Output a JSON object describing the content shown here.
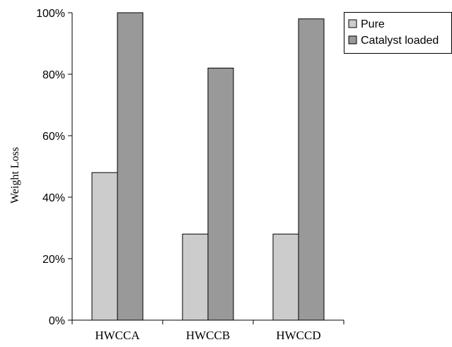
{
  "chart_data": {
    "type": "bar",
    "title": "",
    "xlabel": "",
    "ylabel": "Weight Loss",
    "ylim": [
      0,
      100
    ],
    "yticks": [
      "0%",
      "20%",
      "40%",
      "60%",
      "80%",
      "100%"
    ],
    "categories": [
      "HWCCA",
      "HWCCB",
      "HWCCD"
    ],
    "series": [
      {
        "name": "Pure",
        "values": [
          48,
          28,
          28
        ],
        "color": "#cccccc"
      },
      {
        "name": "Catalyst loaded",
        "values": [
          100,
          82,
          98
        ],
        "color": "#999999"
      }
    ],
    "grid": false,
    "legend_position": "top-right"
  }
}
